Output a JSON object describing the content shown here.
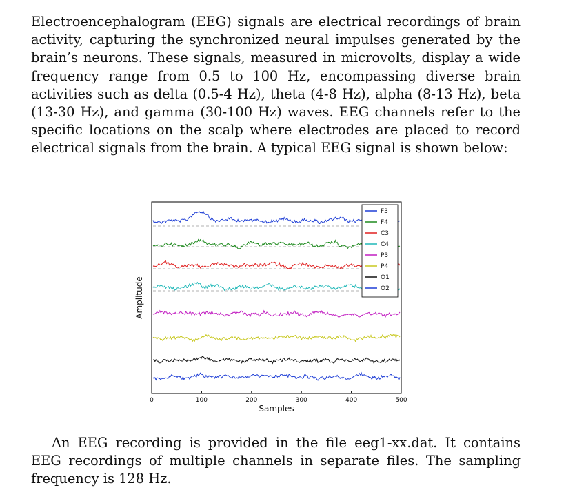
{
  "paragraph_1": "Electroencephalogram (EEG) signals are electrical recordings of brain activity, capturing the synchronized neural impulses generated by the brain’s neurons. These signals, measured in microvolts, display a wide frequency range from 0.5 to 100 Hz, encompassing diverse brain activities such as delta (0.5-4 Hz), theta (4-8 Hz), alpha (8-13 Hz), beta (13-30 Hz), and gamma (30-100 Hz) waves. EEG channels refer to the specific locations on the scalp where electrodes are placed to record electrical signals from the brain. A typical EEG signal is shown below:",
  "paragraph_2": "An EEG recording is provided in the file eeg1-xx.dat. It contains EEG recordings of multiple channels in separate files. The sampling frequency is 128 Hz.",
  "chart_data": {
    "type": "line",
    "title": "",
    "xlabel": "Samples",
    "ylabel": "Amplitude",
    "xlim": [
      0,
      500
    ],
    "xticks": [
      "0",
      "100",
      "200",
      "300",
      "400",
      "500"
    ],
    "grid": false,
    "legend_placement": "top-right",
    "series": [
      {
        "name": "F3",
        "color": "#1f3fd6"
      },
      {
        "name": "F4",
        "color": "#1e8a1e"
      },
      {
        "name": "C3",
        "color": "#e02020"
      },
      {
        "name": "C4",
        "color": "#20b8b8"
      },
      {
        "name": "P3",
        "color": "#c21fc2"
      },
      {
        "name": "P4",
        "color": "#c8c820"
      },
      {
        "name": "O1",
        "color": "#111111"
      },
      {
        "name": "O2",
        "color": "#1f3fd6"
      }
    ]
  }
}
